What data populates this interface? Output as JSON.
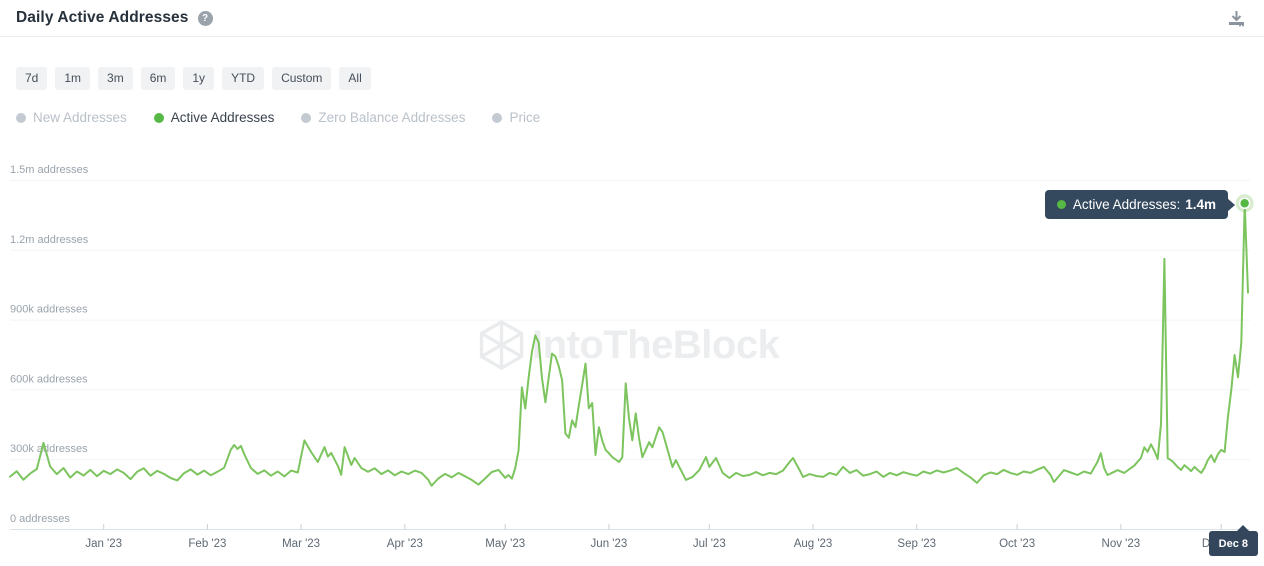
{
  "header": {
    "title": "Daily Active Addresses",
    "help_glyph": "?"
  },
  "toolbar": {
    "ranges": [
      "7d",
      "1m",
      "3m",
      "6m",
      "1y",
      "YTD",
      "Custom",
      "All"
    ]
  },
  "legend": {
    "items": [
      {
        "label": "New Addresses",
        "active": false
      },
      {
        "label": "Active Addresses",
        "active": true
      },
      {
        "label": "Zero Balance Addresses",
        "active": false
      },
      {
        "label": "Price",
        "active": false
      }
    ]
  },
  "watermark": {
    "text": "IntoTheBlock"
  },
  "tooltip": {
    "label_prefix": "Active Addresses:",
    "value": "1.4m",
    "date_badge": "Dec 8"
  },
  "colors": {
    "line_green": "#7cc45e",
    "dot_green": "#56b945",
    "inactive_dot": "#c4cad1",
    "tooltip_bg": "#35495e",
    "badge_bg": "#33465c",
    "watermark_gray": "#ebedef",
    "axis": "#dbe3ea",
    "grid": "#f2f4f5",
    "tick": "#c8d1d9",
    "y_label": "#9aa3ac",
    "x_label": "#5e6974"
  },
  "chart_data": {
    "type": "line",
    "title": "Daily Active Addresses",
    "series_name": "Active Addresses",
    "unit": "addresses",
    "ylim": [
      0,
      1500000
    ],
    "x_range": [
      "2022-12-04",
      "2023-12-09"
    ],
    "grid": true,
    "legend_position": "top-left",
    "y_ticks": [
      {
        "value": 0,
        "label": "0 addresses"
      },
      {
        "value": 300000,
        "label": "300k addresses"
      },
      {
        "value": 600000,
        "label": "600k addresses"
      },
      {
        "value": 900000,
        "label": "900k addresses"
      },
      {
        "value": 1200000,
        "label": "1.2m addresses"
      },
      {
        "value": 1500000,
        "label": "1.5m addresses"
      }
    ],
    "x_ticks": [
      {
        "date": "2023-01-01",
        "label": "Jan '23"
      },
      {
        "date": "2023-02-01",
        "label": "Feb '23"
      },
      {
        "date": "2023-03-01",
        "label": "Mar '23"
      },
      {
        "date": "2023-04-01",
        "label": "Apr '23"
      },
      {
        "date": "2023-05-01",
        "label": "May '23"
      },
      {
        "date": "2023-06-01",
        "label": "Jun '23"
      },
      {
        "date": "2023-07-01",
        "label": "Jul '23"
      },
      {
        "date": "2023-08-01",
        "label": "Aug '23"
      },
      {
        "date": "2023-09-01",
        "label": "Sep '23"
      },
      {
        "date": "2023-10-01",
        "label": "Oct '23"
      },
      {
        "date": "2023-11-01",
        "label": "Nov '23"
      },
      {
        "date": "2023-12-01",
        "label": "Dec '23"
      }
    ],
    "highlight": {
      "date": "2023-12-08",
      "value": 1400000,
      "tooltip": "Active Addresses: 1.4m",
      "x_axis_label": "Dec 8"
    },
    "series": [
      {
        "name": "Active Addresses",
        "color": "#7cc45e",
        "points": [
          [
            "2022-12-04",
            225000
          ],
          [
            "2022-12-06",
            248000
          ],
          [
            "2022-12-08",
            212000
          ],
          [
            "2022-12-10",
            238000
          ],
          [
            "2022-12-12",
            258000
          ],
          [
            "2022-12-14",
            370000
          ],
          [
            "2022-12-16",
            268000
          ],
          [
            "2022-12-18",
            236000
          ],
          [
            "2022-12-20",
            262000
          ],
          [
            "2022-12-22",
            221000
          ],
          [
            "2022-12-24",
            247000
          ],
          [
            "2022-12-26",
            230000
          ],
          [
            "2022-12-28",
            254000
          ],
          [
            "2022-12-30",
            227000
          ],
          [
            "2023-01-01",
            250000
          ],
          [
            "2023-01-03",
            236000
          ],
          [
            "2023-01-05",
            256000
          ],
          [
            "2023-01-07",
            241000
          ],
          [
            "2023-01-09",
            214000
          ],
          [
            "2023-01-11",
            246000
          ],
          [
            "2023-01-13",
            261000
          ],
          [
            "2023-01-15",
            229000
          ],
          [
            "2023-01-17",
            250000
          ],
          [
            "2023-01-19",
            237000
          ],
          [
            "2023-01-21",
            219000
          ],
          [
            "2023-01-23",
            209000
          ],
          [
            "2023-01-25",
            240000
          ],
          [
            "2023-01-27",
            256000
          ],
          [
            "2023-01-29",
            234000
          ],
          [
            "2023-01-31",
            251000
          ],
          [
            "2023-02-02",
            231000
          ],
          [
            "2023-02-04",
            246000
          ],
          [
            "2023-02-06",
            263000
          ],
          [
            "2023-02-08",
            341000
          ],
          [
            "2023-02-09",
            361000
          ],
          [
            "2023-02-10",
            344000
          ],
          [
            "2023-02-11",
            357000
          ],
          [
            "2023-02-12",
            322000
          ],
          [
            "2023-02-14",
            262000
          ],
          [
            "2023-02-16",
            237000
          ],
          [
            "2023-02-18",
            252000
          ],
          [
            "2023-02-20",
            229000
          ],
          [
            "2023-02-22",
            247000
          ],
          [
            "2023-02-24",
            226000
          ],
          [
            "2023-02-26",
            251000
          ],
          [
            "2023-02-28",
            243000
          ],
          [
            "2023-03-01",
            312000
          ],
          [
            "2023-03-02",
            381000
          ],
          [
            "2023-03-04",
            331000
          ],
          [
            "2023-03-06",
            288000
          ],
          [
            "2023-03-08",
            352000
          ],
          [
            "2023-03-09",
            311000
          ],
          [
            "2023-03-10",
            327000
          ],
          [
            "2023-03-12",
            271000
          ],
          [
            "2023-03-13",
            233000
          ],
          [
            "2023-03-14",
            352000
          ],
          [
            "2023-03-16",
            275000
          ],
          [
            "2023-03-17",
            305000
          ],
          [
            "2023-03-19",
            262000
          ],
          [
            "2023-03-21",
            246000
          ],
          [
            "2023-03-23",
            261000
          ],
          [
            "2023-03-25",
            236000
          ],
          [
            "2023-03-27",
            252000
          ],
          [
            "2023-03-29",
            231000
          ],
          [
            "2023-03-31",
            247000
          ],
          [
            "2023-04-02",
            236000
          ],
          [
            "2023-04-04",
            251000
          ],
          [
            "2023-04-06",
            241000
          ],
          [
            "2023-04-08",
            212000
          ],
          [
            "2023-04-09",
            186000
          ],
          [
            "2023-04-11",
            217000
          ],
          [
            "2023-04-13",
            237000
          ],
          [
            "2023-04-15",
            222000
          ],
          [
            "2023-04-17",
            241000
          ],
          [
            "2023-04-19",
            227000
          ],
          [
            "2023-04-21",
            211000
          ],
          [
            "2023-04-23",
            191000
          ],
          [
            "2023-04-25",
            217000
          ],
          [
            "2023-04-27",
            245000
          ],
          [
            "2023-04-29",
            254000
          ],
          [
            "2023-05-01",
            220000
          ],
          [
            "2023-05-02",
            232000
          ],
          [
            "2023-05-03",
            216000
          ],
          [
            "2023-05-04",
            261000
          ],
          [
            "2023-05-05",
            339000
          ],
          [
            "2023-05-06",
            609000
          ],
          [
            "2023-05-07",
            518000
          ],
          [
            "2023-05-08",
            650000
          ],
          [
            "2023-05-09",
            762000
          ],
          [
            "2023-05-10",
            832000
          ],
          [
            "2023-05-11",
            801000
          ],
          [
            "2023-05-12",
            648000
          ],
          [
            "2023-05-13",
            545000
          ],
          [
            "2023-05-14",
            651000
          ],
          [
            "2023-05-15",
            754000
          ],
          [
            "2023-05-16",
            742000
          ],
          [
            "2023-05-17",
            700000
          ],
          [
            "2023-05-18",
            640000
          ],
          [
            "2023-05-19",
            411000
          ],
          [
            "2023-05-20",
            392000
          ],
          [
            "2023-05-21",
            467000
          ],
          [
            "2023-05-22",
            438000
          ],
          [
            "2023-05-23",
            531000
          ],
          [
            "2023-05-24",
            620000
          ],
          [
            "2023-05-25",
            711000
          ],
          [
            "2023-05-26",
            519000
          ],
          [
            "2023-05-27",
            541000
          ],
          [
            "2023-05-28",
            318000
          ],
          [
            "2023-05-29",
            437000
          ],
          [
            "2023-05-30",
            381000
          ],
          [
            "2023-05-31",
            340000
          ],
          [
            "2023-06-01",
            326000
          ],
          [
            "2023-06-02",
            309000
          ],
          [
            "2023-06-04",
            288000
          ],
          [
            "2023-06-05",
            308000
          ],
          [
            "2023-06-06",
            626000
          ],
          [
            "2023-06-07",
            476000
          ],
          [
            "2023-06-08",
            381000
          ],
          [
            "2023-06-09",
            497000
          ],
          [
            "2023-06-10",
            391000
          ],
          [
            "2023-06-11",
            309000
          ],
          [
            "2023-06-13",
            373000
          ],
          [
            "2023-06-14",
            351000
          ],
          [
            "2023-06-16",
            437000
          ],
          [
            "2023-06-17",
            417000
          ],
          [
            "2023-06-20",
            266000
          ],
          [
            "2023-06-21",
            296000
          ],
          [
            "2023-06-24",
            211000
          ],
          [
            "2023-06-26",
            224000
          ],
          [
            "2023-06-28",
            253000
          ],
          [
            "2023-06-30",
            309000
          ],
          [
            "2023-07-01",
            267000
          ],
          [
            "2023-07-03",
            305000
          ],
          [
            "2023-07-05",
            241000
          ],
          [
            "2023-07-07",
            219000
          ],
          [
            "2023-07-09",
            241000
          ],
          [
            "2023-07-11",
            228000
          ],
          [
            "2023-07-13",
            232000
          ],
          [
            "2023-07-15",
            245000
          ],
          [
            "2023-07-17",
            231000
          ],
          [
            "2023-07-19",
            241000
          ],
          [
            "2023-07-21",
            236000
          ],
          [
            "2023-07-23",
            251000
          ],
          [
            "2023-07-25",
            288000
          ],
          [
            "2023-07-26",
            305000
          ],
          [
            "2023-07-28",
            253000
          ],
          [
            "2023-07-29",
            224000
          ],
          [
            "2023-07-31",
            236000
          ],
          [
            "2023-08-02",
            228000
          ],
          [
            "2023-08-04",
            224000
          ],
          [
            "2023-08-06",
            241000
          ],
          [
            "2023-08-08",
            232000
          ],
          [
            "2023-08-10",
            267000
          ],
          [
            "2023-08-12",
            241000
          ],
          [
            "2023-08-14",
            253000
          ],
          [
            "2023-08-16",
            229000
          ],
          [
            "2023-08-18",
            236000
          ],
          [
            "2023-08-20",
            247000
          ],
          [
            "2023-08-22",
            224000
          ],
          [
            "2023-08-24",
            241000
          ],
          [
            "2023-08-26",
            231000
          ],
          [
            "2023-08-28",
            244000
          ],
          [
            "2023-08-30",
            236000
          ],
          [
            "2023-09-01",
            229000
          ],
          [
            "2023-09-03",
            247000
          ],
          [
            "2023-09-05",
            238000
          ],
          [
            "2023-09-07",
            252000
          ],
          [
            "2023-09-09",
            243000
          ],
          [
            "2023-09-11",
            251000
          ],
          [
            "2023-09-13",
            262000
          ],
          [
            "2023-09-15",
            241000
          ],
          [
            "2023-09-17",
            222000
          ],
          [
            "2023-09-19",
            198000
          ],
          [
            "2023-09-21",
            231000
          ],
          [
            "2023-09-23",
            243000
          ],
          [
            "2023-09-25",
            236000
          ],
          [
            "2023-09-27",
            254000
          ],
          [
            "2023-09-29",
            241000
          ],
          [
            "2023-10-01",
            233000
          ],
          [
            "2023-10-03",
            247000
          ],
          [
            "2023-10-05",
            241000
          ],
          [
            "2023-10-07",
            255000
          ],
          [
            "2023-10-09",
            267000
          ],
          [
            "2023-10-11",
            232000
          ],
          [
            "2023-10-12",
            202000
          ],
          [
            "2023-10-14",
            236000
          ],
          [
            "2023-10-15",
            253000
          ],
          [
            "2023-10-17",
            243000
          ],
          [
            "2023-10-19",
            232000
          ],
          [
            "2023-10-21",
            247000
          ],
          [
            "2023-10-23",
            238000
          ],
          [
            "2023-10-25",
            288000
          ],
          [
            "2023-10-26",
            326000
          ],
          [
            "2023-10-27",
            262000
          ],
          [
            "2023-10-28",
            232000
          ],
          [
            "2023-10-30",
            246000
          ],
          [
            "2023-10-31",
            253000
          ],
          [
            "2023-11-02",
            241000
          ],
          [
            "2023-11-04",
            262000
          ],
          [
            "2023-11-05",
            272000
          ],
          [
            "2023-11-07",
            305000
          ],
          [
            "2023-11-08",
            351000
          ],
          [
            "2023-11-09",
            332000
          ],
          [
            "2023-11-10",
            364000
          ],
          [
            "2023-11-11",
            336000
          ],
          [
            "2023-11-12",
            301000
          ],
          [
            "2023-11-13",
            452000
          ],
          [
            "2023-11-14",
            1161000
          ],
          [
            "2023-11-15",
            304000
          ],
          [
            "2023-11-16",
            296000
          ],
          [
            "2023-11-17",
            282000
          ],
          [
            "2023-11-18",
            266000
          ],
          [
            "2023-11-19",
            254000
          ],
          [
            "2023-11-20",
            274000
          ],
          [
            "2023-11-21",
            262000
          ],
          [
            "2023-11-22",
            249000
          ],
          [
            "2023-11-23",
            267000
          ],
          [
            "2023-11-24",
            253000
          ],
          [
            "2023-11-25",
            241000
          ],
          [
            "2023-11-26",
            263000
          ],
          [
            "2023-11-27",
            296000
          ],
          [
            "2023-11-28",
            317000
          ],
          [
            "2023-11-29",
            288000
          ],
          [
            "2023-11-30",
            322000
          ],
          [
            "2023-12-01",
            340000
          ],
          [
            "2023-12-02",
            331000
          ],
          [
            "2023-12-03",
            481000
          ],
          [
            "2023-12-04",
            598000
          ],
          [
            "2023-12-05",
            748000
          ],
          [
            "2023-12-06",
            652000
          ],
          [
            "2023-12-07",
            801000
          ],
          [
            "2023-12-08",
            1400000
          ],
          [
            "2023-12-09",
            1016000
          ]
        ]
      }
    ]
  }
}
